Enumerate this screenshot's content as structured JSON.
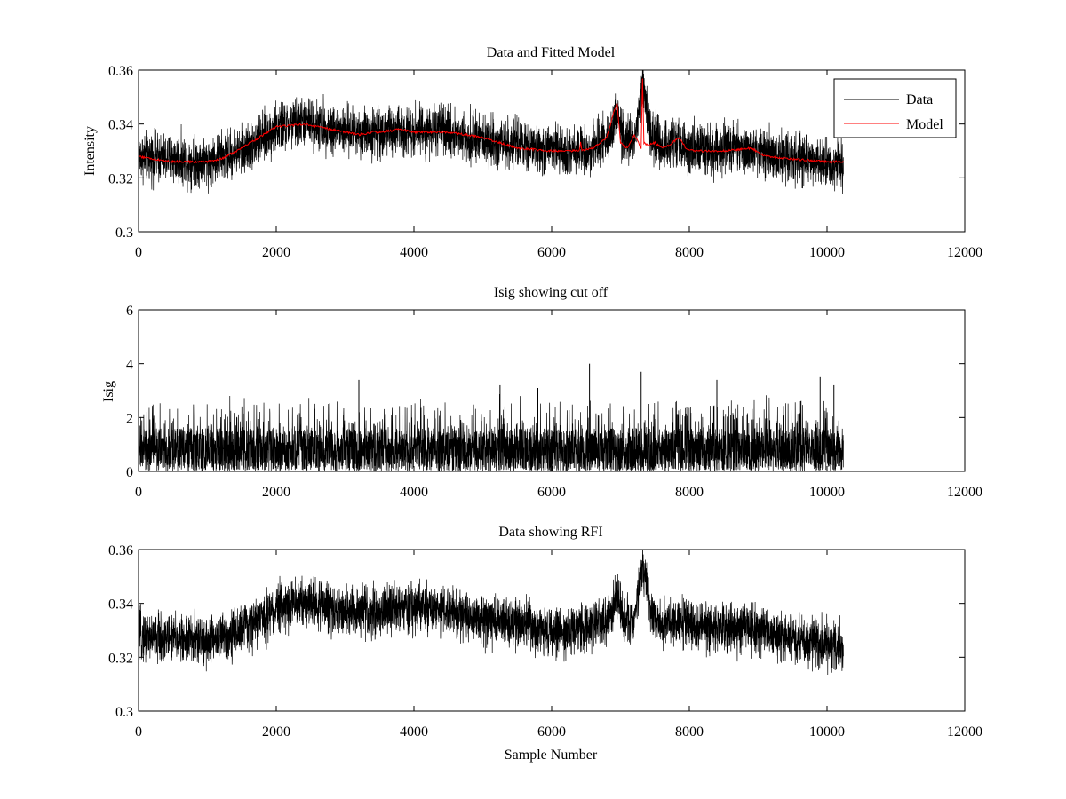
{
  "chart_data": [
    {
      "type": "line",
      "title": "Data and Fitted Model",
      "xlabel": "",
      "ylabel": "Intensity",
      "xlim": [
        0,
        12000
      ],
      "ylim": [
        0.3,
        0.36
      ],
      "xticks": [
        0,
        2000,
        4000,
        6000,
        8000,
        10000,
        12000
      ],
      "xtick_labels": [
        "0",
        "2000",
        "4000",
        "6000",
        "8000",
        "10000",
        "12000"
      ],
      "yticks": [
        0.3,
        0.32,
        0.34,
        0.36
      ],
      "ytick_labels": [
        "0.3",
        "0.32",
        "0.34",
        "0.36"
      ],
      "grid": false,
      "legend": {
        "position": "top-right",
        "entries": [
          "Data",
          "Model"
        ]
      },
      "series": [
        {
          "name": "Data",
          "color": "#000000",
          "style": "noisy",
          "n_samples": 10240,
          "x": [
            0,
            500,
            1000,
            1500,
            2000,
            2400,
            3000,
            3500,
            4000,
            4500,
            5000,
            5500,
            6000,
            6500,
            6850,
            6950,
            7050,
            7200,
            7320,
            7450,
            7600,
            7850,
            8000,
            8500,
            9000,
            9500,
            10000,
            10240
          ],
          "values": [
            0.328,
            0.327,
            0.326,
            0.33,
            0.338,
            0.341,
            0.337,
            0.337,
            0.338,
            0.337,
            0.334,
            0.332,
            0.33,
            0.33,
            0.335,
            0.344,
            0.333,
            0.333,
            0.356,
            0.336,
            0.332,
            0.334,
            0.331,
            0.331,
            0.33,
            0.327,
            0.325,
            0.325
          ],
          "noise_amplitude": 0.0045
        },
        {
          "name": "Model",
          "color": "#ff0000",
          "style": "line",
          "x": [
            0,
            200,
            500,
            1000,
            1200,
            1500,
            2000,
            2400,
            3000,
            3200,
            3400,
            3500,
            3800,
            4000,
            4500,
            5000,
            5500,
            6000,
            6400,
            6420,
            6440,
            6600,
            6800,
            6900,
            6950,
            7000,
            7100,
            7200,
            7300,
            7320,
            7340,
            7400,
            7500,
            7600,
            7700,
            7850,
            7950,
            8100,
            8500,
            8900,
            9100,
            9500,
            10000,
            10240
          ],
          "values": [
            0.328,
            0.327,
            0.326,
            0.326,
            0.327,
            0.331,
            0.339,
            0.34,
            0.337,
            0.336,
            0.337,
            0.337,
            0.338,
            0.337,
            0.337,
            0.335,
            0.331,
            0.33,
            0.33,
            0.333,
            0.33,
            0.331,
            0.335,
            0.344,
            0.348,
            0.333,
            0.331,
            0.336,
            0.331,
            0.357,
            0.333,
            0.332,
            0.333,
            0.331,
            0.332,
            0.335,
            0.331,
            0.33,
            0.33,
            0.331,
            0.328,
            0.327,
            0.326,
            0.326
          ]
        }
      ]
    },
    {
      "type": "line",
      "title": "Isig showing cut off",
      "xlabel": "",
      "ylabel": "Isig",
      "xlim": [
        0,
        12000
      ],
      "ylim": [
        0,
        6
      ],
      "xticks": [
        0,
        2000,
        4000,
        6000,
        8000,
        10000,
        12000
      ],
      "xtick_labels": [
        "0",
        "2000",
        "4000",
        "6000",
        "8000",
        "10000",
        "12000"
      ],
      "yticks": [
        0,
        2,
        4,
        6
      ],
      "ytick_labels": [
        "0",
        "2",
        "4",
        "6"
      ],
      "grid": false,
      "series": [
        {
          "color": "#000000",
          "style": "noisy-positive",
          "n_samples": 10240,
          "x": [
            0,
            10240
          ],
          "values": [
            0.8,
            0.8
          ],
          "typical_max": 2.6,
          "spikes": [
            {
              "x": 3200,
              "value": 3.4
            },
            {
              "x": 5250,
              "value": 3.2
            },
            {
              "x": 5800,
              "value": 3.1
            },
            {
              "x": 6550,
              "value": 4.0
            },
            {
              "x": 7300,
              "value": 3.7
            },
            {
              "x": 8400,
              "value": 3.4
            },
            {
              "x": 9900,
              "value": 3.5
            },
            {
              "x": 10100,
              "value": 3.2
            }
          ]
        }
      ]
    },
    {
      "type": "line",
      "title": "Data showing RFI",
      "xlabel": "Sample Number",
      "ylabel": "",
      "xlim": [
        0,
        12000
      ],
      "ylim": [
        0.3,
        0.36
      ],
      "xticks": [
        0,
        2000,
        4000,
        6000,
        8000,
        10000,
        12000
      ],
      "xtick_labels": [
        "0",
        "2000",
        "4000",
        "6000",
        "8000",
        "10000",
        "12000"
      ],
      "yticks": [
        0.3,
        0.32,
        0.34,
        0.36
      ],
      "ytick_labels": [
        "0.3",
        "0.32",
        "0.34",
        "0.36"
      ],
      "grid": false,
      "series": [
        {
          "color": "#000000",
          "style": "noisy",
          "n_samples": 10240,
          "x": [
            0,
            500,
            1000,
            1500,
            2000,
            2400,
            3000,
            3500,
            4000,
            4500,
            5000,
            5500,
            6000,
            6500,
            6850,
            6950,
            7050,
            7200,
            7320,
            7450,
            7600,
            7850,
            8000,
            8500,
            9000,
            9500,
            10000,
            10240
          ],
          "values": [
            0.328,
            0.327,
            0.326,
            0.33,
            0.338,
            0.341,
            0.337,
            0.337,
            0.338,
            0.337,
            0.334,
            0.332,
            0.33,
            0.33,
            0.335,
            0.344,
            0.333,
            0.333,
            0.356,
            0.336,
            0.332,
            0.334,
            0.331,
            0.331,
            0.33,
            0.327,
            0.325,
            0.325
          ],
          "noise_amplitude": 0.0045
        }
      ]
    }
  ]
}
